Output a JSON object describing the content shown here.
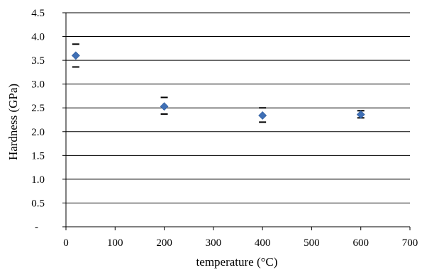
{
  "chart_data": {
    "type": "scatter",
    "xlabel": "temperature (°C)",
    "ylabel": "Hardness (GPa)",
    "xlim": [
      0,
      700
    ],
    "ylim": [
      0,
      4.5
    ],
    "x_ticks": [
      "0",
      "100",
      "200",
      "300",
      "400",
      "500",
      "600",
      "700"
    ],
    "y_ticks": [
      "-",
      "0.5",
      "1.0",
      "1.5",
      "2.0",
      "2.5",
      "3.0",
      "3.5",
      "4.0",
      "4.5"
    ],
    "grid": "horizontal",
    "marker_color": "#3F6FB5",
    "errorbar_color": "#000000",
    "series": [
      {
        "x": [
          20,
          200,
          400,
          600
        ],
        "y": [
          3.6,
          2.53,
          2.34,
          2.36
        ],
        "err_low": [
          3.36,
          2.37,
          2.2,
          2.29
        ],
        "err_high": [
          3.84,
          2.72,
          2.5,
          2.44
        ]
      }
    ]
  }
}
